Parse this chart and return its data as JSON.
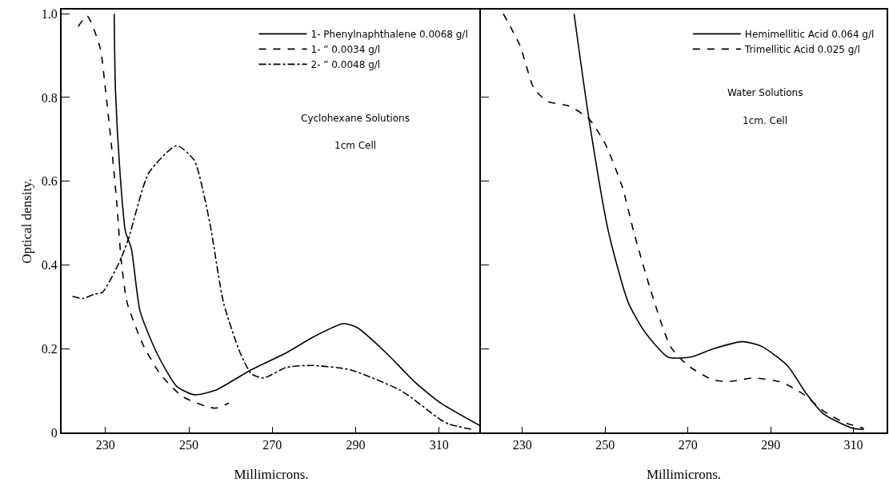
{
  "chart_data": [
    {
      "type": "line",
      "xlabel": "Millimicrons.",
      "ylabel": "Optical density.",
      "xlim": [
        219.5,
        320
      ],
      "xticks": [
        230,
        250,
        270,
        290,
        310
      ],
      "ylim": [
        0,
        1.01
      ],
      "yticks": [
        0,
        0.2,
        0.4,
        0.6,
        0.8,
        {
          "value": 1,
          "label": "1.0"
        }
      ],
      "grid": false,
      "legend": "top right",
      "marker": "none",
      "annotations": [
        "Cyclohexane Solutions",
        "1cm Cell"
      ],
      "series": [
        {
          "name": "1- Phenylnaphthalene 0.0068 g/l",
          "color": "#000000",
          "line_style": "solid",
          "x": [
            232.1,
            232.4,
            233.5,
            234.8,
            236.2,
            238.3,
            242.3,
            247.1,
            251.3,
            256.2,
            265,
            273.3,
            280.2,
            287.1,
            290.4,
            297.3,
            304.2,
            310.4,
            320
          ],
          "values": [
            1.0,
            0.82,
            0.62,
            0.48,
            0.44,
            0.29,
            0.19,
            0.11,
            0.09,
            0.1,
            0.15,
            0.19,
            0.23,
            0.26,
            0.25,
            0.19,
            0.12,
            0.07,
            0.015
          ]
        },
        {
          "name": "1- ” 0.0034 g/l",
          "color": "#000000",
          "line_style": "dashed",
          "x": [
            223.5,
            225.6,
            228.7,
            230,
            231.4,
            232.7,
            233.8,
            235.2,
            239,
            243.1,
            248.6,
            256.2,
            259.6
          ],
          "values": [
            0.97,
            0.995,
            0.92,
            0.82,
            0.69,
            0.55,
            0.41,
            0.31,
            0.21,
            0.14,
            0.085,
            0.058,
            0.07
          ]
        },
        {
          "name": "2- ” 0.0048 g/l",
          "color": "#000000",
          "line_style": "dashdot",
          "x": [
            222.1,
            224.5,
            227.3,
            229.3,
            233.5,
            235.6,
            240.4,
            247.1,
            251.3,
            254,
            255.4,
            258.3,
            262.3,
            265,
            267.9,
            273.3,
            279.4,
            288.5,
            300.8,
            310.4,
            312.3,
            317.9
          ],
          "values": [
            0.325,
            0.32,
            0.33,
            0.335,
            0.41,
            0.465,
            0.62,
            0.685,
            0.65,
            0.55,
            0.48,
            0.31,
            0.19,
            0.14,
            0.13,
            0.155,
            0.16,
            0.15,
            0.1,
            0.03,
            0.02,
            0.007
          ]
        }
      ]
    },
    {
      "type": "line",
      "xlabel": "Millimicrons.",
      "xlim": [
        220,
        318
      ],
      "xticks": [
        230,
        250,
        270,
        290,
        310
      ],
      "ylim": [
        0,
        1.01
      ],
      "yticks": [
        {
          "value": 0.2,
          "label": null
        },
        {
          "value": 0.4,
          "label": null
        },
        {
          "value": 0.6,
          "label": null
        },
        {
          "value": 0.8,
          "label": null
        }
      ],
      "tick_labels": "x",
      "grid": false,
      "legend": "top right",
      "marker": "none",
      "annotations": [
        "Water Solutions",
        "1cm. Cell"
      ],
      "series": [
        {
          "name": "Hemimellitic Acid 0.064 g/l",
          "color": "#000000",
          "line_style": "solid",
          "x": [
            242.5,
            246,
            250.8,
            255.6,
            259.6,
            265.2,
            270.6,
            276.2,
            283.1,
            287.9,
            294,
            298.8,
            302.9,
            309.8,
            312.5
          ],
          "values": [
            1.0,
            0.755,
            0.48,
            0.31,
            0.24,
            0.18,
            0.18,
            0.2,
            0.217,
            0.205,
            0.16,
            0.09,
            0.043,
            0.01,
            0.007
          ]
        },
        {
          "name": "Trimellitic Acid 0.025 g/l",
          "color": "#000000",
          "line_style": "dashed",
          "x": [
            225.4,
            229.4,
            232.9,
            236.3,
            241.2,
            246,
            250,
            254.2,
            256.9,
            261,
            265.8,
            270,
            276.2,
            280.2,
            285.8,
            292.7,
            298.1,
            302.9,
            307.7,
            312.5
          ],
          "values": [
            1.0,
            0.925,
            0.82,
            0.79,
            0.78,
            0.75,
            0.69,
            0.585,
            0.48,
            0.34,
            0.205,
            0.16,
            0.125,
            0.122,
            0.13,
            0.12,
            0.09,
            0.05,
            0.024,
            0.01
          ]
        }
      ]
    }
  ]
}
